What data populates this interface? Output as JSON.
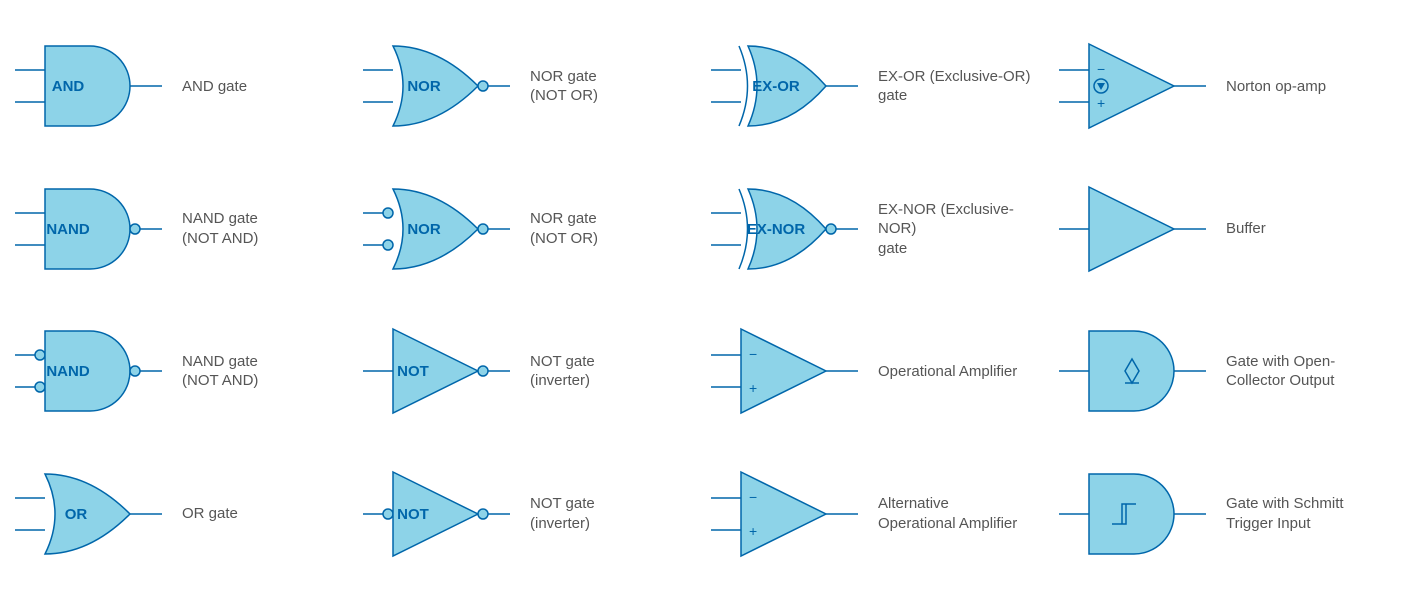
{
  "style": {
    "fill_color": "#8dd3e8",
    "stroke_color": "#0066aa",
    "stroke_width": 1.5,
    "text_color": "#0066aa",
    "label_color": "#555555",
    "background": "#ffffff",
    "symbol_text_fontsize": 15,
    "label_fontsize": 15
  },
  "gates": [
    {
      "row": 0,
      "col": 0,
      "shape": "and",
      "text": "AND",
      "label": "AND gate",
      "inputs": 2,
      "output_bubble": false,
      "input_bubbles": false
    },
    {
      "row": 0,
      "col": 1,
      "shape": "or",
      "text": "NOR",
      "label": "NOR gate\n(NOT OR)",
      "inputs": 2,
      "output_bubble": true,
      "input_bubbles": false
    },
    {
      "row": 0,
      "col": 2,
      "shape": "xor",
      "text": "EX-OR",
      "label": "EX-OR (Exclusive-OR)\ngate",
      "inputs": 2,
      "output_bubble": false,
      "input_bubbles": false
    },
    {
      "row": 0,
      "col": 3,
      "shape": "opamp",
      "text": "",
      "label": "Norton op-amp",
      "inputs": 2,
      "output_bubble": false,
      "norton_symbol": true,
      "signs": true
    },
    {
      "row": 1,
      "col": 0,
      "shape": "and",
      "text": "NAND",
      "label": "NAND gate\n(NOT AND)",
      "inputs": 2,
      "output_bubble": true,
      "input_bubbles": false
    },
    {
      "row": 1,
      "col": 1,
      "shape": "or",
      "text": "NOR",
      "label": "NOR gate\n(NOT OR)",
      "inputs": 2,
      "output_bubble": true,
      "input_bubbles": true
    },
    {
      "row": 1,
      "col": 2,
      "shape": "xor",
      "text": "EX-NOR",
      "label": "EX-NOR (Exclusive-NOR)\ngate",
      "inputs": 2,
      "output_bubble": true,
      "input_bubbles": false
    },
    {
      "row": 1,
      "col": 3,
      "shape": "triangle",
      "text": "",
      "label": "Buffer",
      "inputs": 1,
      "output_bubble": false,
      "input_bubbles": false
    },
    {
      "row": 2,
      "col": 0,
      "shape": "and",
      "text": "NAND",
      "label": "NAND gate\n(NOT AND)",
      "inputs": 2,
      "output_bubble": true,
      "input_bubbles": true
    },
    {
      "row": 2,
      "col": 1,
      "shape": "triangle",
      "text": "NOT",
      "label": "NOT gate\n(inverter)",
      "inputs": 1,
      "output_bubble": true,
      "input_bubbles": false
    },
    {
      "row": 2,
      "col": 2,
      "shape": "opamp",
      "text": "",
      "label": "Operational Amplifier",
      "inputs": 2,
      "output_bubble": false,
      "signs": true
    },
    {
      "row": 2,
      "col": 3,
      "shape": "and",
      "text": "",
      "label": "Gate with Open-\nCollector Output",
      "inputs": 1,
      "output_bubble": false,
      "open_collector": true
    },
    {
      "row": 3,
      "col": 0,
      "shape": "or",
      "text": "OR",
      "label": "OR gate",
      "inputs": 2,
      "output_bubble": false,
      "input_bubbles": false
    },
    {
      "row": 3,
      "col": 1,
      "shape": "triangle",
      "text": "NOT",
      "label": "NOT gate\n(inverter)",
      "inputs": 1,
      "output_bubble": true,
      "input_bubbles": true
    },
    {
      "row": 3,
      "col": 2,
      "shape": "opamp",
      "text": "",
      "label": "Alternative\nOperational Amplifier",
      "inputs": 2,
      "output_bubble": false,
      "signs": true
    },
    {
      "row": 3,
      "col": 3,
      "shape": "and",
      "text": "",
      "label": "Gate with Schmitt\nTrigger Input",
      "inputs": 1,
      "output_bubble": false,
      "schmitt": true
    }
  ]
}
